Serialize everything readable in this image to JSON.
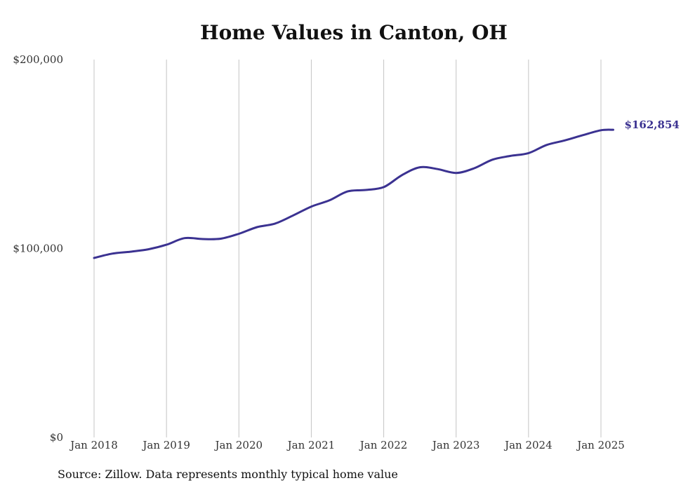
{
  "chart_data": {
    "type": "line",
    "title": "Home Values in Canton, OH",
    "xlabel": "",
    "ylabel": "",
    "ylim": [
      0,
      200000
    ],
    "y_ticks": [
      {
        "value": 0,
        "label": "$0"
      },
      {
        "value": 100000,
        "label": "$100,000"
      },
      {
        "value": 200000,
        "label": "$200,000"
      }
    ],
    "x_ticks": [
      {
        "value": 2018,
        "label": "Jan 2018"
      },
      {
        "value": 2019,
        "label": "Jan 2019"
      },
      {
        "value": 2020,
        "label": "Jan 2020"
      },
      {
        "value": 2021,
        "label": "Jan 2021"
      },
      {
        "value": 2022,
        "label": "Jan 2022"
      },
      {
        "value": 2023,
        "label": "Jan 2023"
      },
      {
        "value": 2024,
        "label": "Jan 2024"
      },
      {
        "value": 2025,
        "label": "Jan 2025"
      }
    ],
    "xlim": [
      2018,
      2025
    ],
    "grid": "vertical",
    "legend": "none",
    "series": [
      {
        "color": "#3b3291",
        "points": [
          [
            2018.0,
            95000
          ],
          [
            2018.25,
            97300
          ],
          [
            2018.5,
            98300
          ],
          [
            2018.75,
            99600
          ],
          [
            2019.0,
            102000
          ],
          [
            2019.25,
            105500
          ],
          [
            2019.5,
            105000
          ],
          [
            2019.75,
            105200
          ],
          [
            2020.0,
            107800
          ],
          [
            2020.25,
            111300
          ],
          [
            2020.5,
            113200
          ],
          [
            2020.75,
            117500
          ],
          [
            2021.0,
            122200
          ],
          [
            2021.25,
            125500
          ],
          [
            2021.5,
            130200
          ],
          [
            2021.75,
            131000
          ],
          [
            2022.0,
            132500
          ],
          [
            2022.25,
            138800
          ],
          [
            2022.5,
            143000
          ],
          [
            2022.75,
            142000
          ],
          [
            2023.0,
            140000
          ],
          [
            2023.25,
            142500
          ],
          [
            2023.5,
            147000
          ],
          [
            2023.75,
            149000
          ],
          [
            2024.0,
            150500
          ],
          [
            2024.25,
            154800
          ],
          [
            2024.5,
            157200
          ],
          [
            2024.75,
            160000
          ],
          [
            2025.0,
            162600
          ],
          [
            2025.17,
            162854
          ]
        ],
        "end_label": "$162,854"
      }
    ]
  },
  "source_note": "Source: Zillow. Data represents monthly typical home value"
}
